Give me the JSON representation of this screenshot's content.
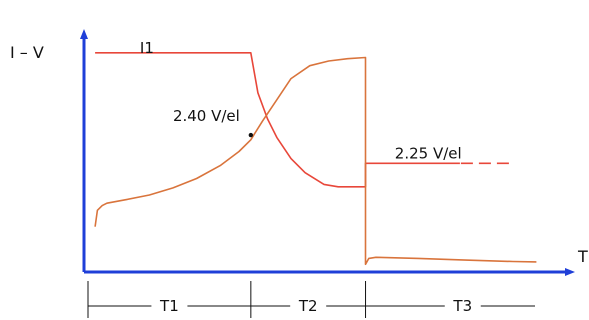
{
  "chart_data": {
    "type": "line",
    "title": "",
    "ylabel": "I – V",
    "xlabel": "T",
    "xlim": [
      0,
      100
    ],
    "ylim": [
      0,
      100
    ],
    "grid": false,
    "legend": "none",
    "annotations": [
      {
        "text": "I1",
        "x": 11,
        "y": 92
      },
      {
        "text": "2.40 V/el",
        "x": 18,
        "y": 63
      },
      {
        "text": "2.25 V/el",
        "x": 65,
        "y": 47
      }
    ],
    "marker_point": {
      "x": 34.5,
      "y": 57
    },
    "phases": [
      {
        "label": "T1",
        "start": 0,
        "end": 34.5
      },
      {
        "label": "T2",
        "start": 34.5,
        "end": 58.8
      },
      {
        "label": "T3",
        "start": 58.8,
        "end": 100
      }
    ],
    "series": [
      {
        "color": "#e8473a",
        "x": [
          1.5,
          34.5,
          34.5,
          36,
          38,
          40,
          43,
          46,
          50,
          53,
          56,
          58.8,
          58.8,
          70,
          78.8
        ],
        "y": [
          92,
          92,
          92,
          75,
          64,
          56,
          47,
          41,
          36,
          35,
          35,
          35,
          45,
          45,
          45
        ]
      },
      {
        "color": "#e8473a",
        "dashed": true,
        "x": [
          79,
          90
        ],
        "y": [
          45,
          45
        ]
      },
      {
        "color": "#d9743c",
        "x": [
          1.5,
          2,
          3,
          4,
          8,
          13,
          18,
          23,
          28,
          32,
          34.5,
          37,
          40,
          43,
          47,
          51,
          55,
          58.8,
          58.8,
          59.5,
          61,
          70,
          80,
          90,
          95
        ],
        "y": [
          18,
          25,
          27,
          28,
          29.5,
          31.5,
          34.5,
          38.5,
          44,
          50,
          55,
          63,
          72,
          81,
          86.5,
          88.5,
          89.5,
          90,
          2,
          4.5,
          5,
          4.5,
          3.8,
          3.2,
          3
        ]
      }
    ]
  }
}
